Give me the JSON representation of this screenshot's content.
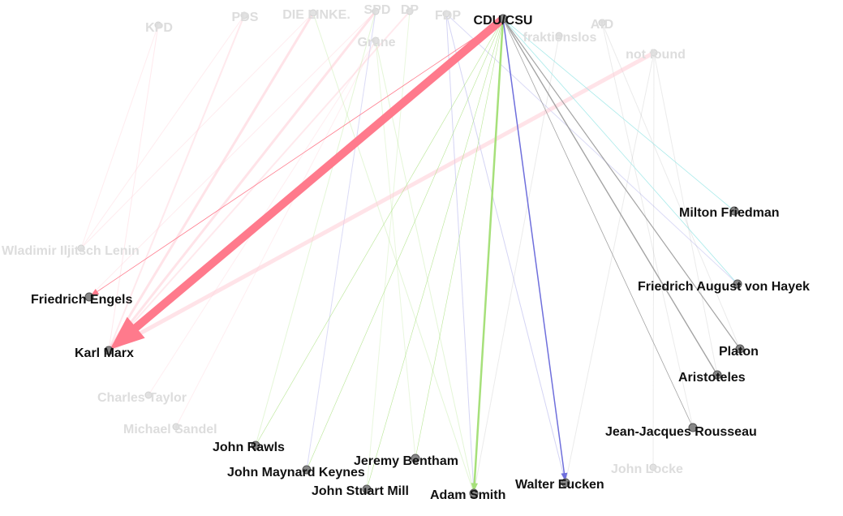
{
  "graph": {
    "highlighted_source": "CDU/CSU",
    "colors": {
      "red": "#ff7a8c",
      "pink": "#ffc8d2",
      "green": "#a6e07a",
      "blue": "#6f6fdc",
      "gray": "#9a9a9a",
      "cyan": "#9fe8e8",
      "node": "#888888"
    },
    "parties": [
      {
        "id": "kpd",
        "label": "KPD",
        "state": "faded"
      },
      {
        "id": "pds",
        "label": "PDS",
        "state": "faded"
      },
      {
        "id": "linke",
        "label": "DIE LINKE.",
        "state": "faded"
      },
      {
        "id": "spd",
        "label": "SPD",
        "state": "faded"
      },
      {
        "id": "dp",
        "label": "DP",
        "state": "faded"
      },
      {
        "id": "fdp",
        "label": "FDP",
        "state": "faded"
      },
      {
        "id": "gruene",
        "label": "Grüne",
        "state": "faded"
      },
      {
        "id": "cdu",
        "label": "CDU/CSU",
        "state": "active"
      },
      {
        "id": "afd",
        "label": "AfD",
        "state": "faded"
      },
      {
        "id": "fraktionslos",
        "label": "fraktionslos",
        "state": "faded"
      },
      {
        "id": "notfound",
        "label": "not found",
        "state": "faded"
      }
    ],
    "thinkers": [
      {
        "id": "friedman",
        "label": "Milton Friedman",
        "state": "active"
      },
      {
        "id": "lenin",
        "label": "Wladimir Iljitsch Lenin",
        "state": "faded"
      },
      {
        "id": "hayek",
        "label": "Friedrich August von Hayek",
        "state": "active"
      },
      {
        "id": "engels",
        "label": "Friedrich Engels",
        "state": "active"
      },
      {
        "id": "marx",
        "label": "Karl Marx",
        "state": "active"
      },
      {
        "id": "platon",
        "label": "Platon",
        "state": "active"
      },
      {
        "id": "aristoteles",
        "label": "Aristoteles",
        "state": "active"
      },
      {
        "id": "taylor",
        "label": "Charles Taylor",
        "state": "faded"
      },
      {
        "id": "sandel",
        "label": "Michael Sandel",
        "state": "faded"
      },
      {
        "id": "rousseau",
        "label": "Jean-Jacques Rousseau",
        "state": "active"
      },
      {
        "id": "rawls",
        "label": "John Rawls",
        "state": "active"
      },
      {
        "id": "bentham",
        "label": "Jeremy Bentham",
        "state": "active"
      },
      {
        "id": "keynes",
        "label": "John Maynard Keynes",
        "state": "active"
      },
      {
        "id": "locke",
        "label": "John Locke",
        "state": "faded"
      },
      {
        "id": "eucken",
        "label": "Walter Eucken",
        "state": "active"
      },
      {
        "id": "mill",
        "label": "John Stuart Mill",
        "state": "active"
      },
      {
        "id": "smith",
        "label": "Adam Smith",
        "state": "active"
      }
    ],
    "edges": [
      {
        "from": "cdu",
        "to": "marx",
        "weight": 10,
        "color": "red",
        "opacity": 1.0,
        "arrow": true
      },
      {
        "from": "cdu",
        "to": "smith",
        "weight": 2.5,
        "color": "green",
        "opacity": 1.0,
        "arrow": true
      },
      {
        "from": "cdu",
        "to": "eucken",
        "weight": 1.5,
        "color": "blue",
        "opacity": 1.0,
        "arrow": true
      },
      {
        "from": "cdu",
        "to": "engels",
        "weight": 0.8,
        "color": "red",
        "opacity": 1.0,
        "arrow": true
      },
      {
        "from": "cdu",
        "to": "platon",
        "weight": 1.2,
        "color": "gray",
        "opacity": 0.9,
        "arrow": false
      },
      {
        "from": "cdu",
        "to": "aristoteles",
        "weight": 1.4,
        "color": "gray",
        "opacity": 0.9,
        "arrow": false
      },
      {
        "from": "cdu",
        "to": "rousseau",
        "weight": 0.8,
        "color": "gray",
        "opacity": 0.9,
        "arrow": false
      },
      {
        "from": "cdu",
        "to": "hayek",
        "weight": 0.8,
        "color": "cyan",
        "opacity": 0.9,
        "arrow": false
      },
      {
        "from": "cdu",
        "to": "friedman",
        "weight": 0.8,
        "color": "cyan",
        "opacity": 0.9,
        "arrow": false
      },
      {
        "from": "cdu",
        "to": "rawls",
        "weight": 0.6,
        "color": "green",
        "opacity": 0.8,
        "arrow": false
      },
      {
        "from": "cdu",
        "to": "keynes",
        "weight": 0.6,
        "color": "green",
        "opacity": 0.8,
        "arrow": false
      },
      {
        "from": "cdu",
        "to": "mill",
        "weight": 0.6,
        "color": "green",
        "opacity": 0.8,
        "arrow": false
      },
      {
        "from": "cdu",
        "to": "bentham",
        "weight": 0.6,
        "color": "green",
        "opacity": 0.8,
        "arrow": false
      },
      {
        "from": "notfound",
        "to": "marx",
        "weight": 5,
        "color": "pink",
        "opacity": 0.5,
        "arrow": false
      },
      {
        "from": "spd",
        "to": "marx",
        "weight": 3,
        "color": "pink",
        "opacity": 0.5,
        "arrow": false
      },
      {
        "from": "linke",
        "to": "marx",
        "weight": 3,
        "color": "pink",
        "opacity": 0.5,
        "arrow": false
      },
      {
        "from": "pds",
        "to": "marx",
        "weight": 2,
        "color": "pink",
        "opacity": 0.4,
        "arrow": false
      },
      {
        "from": "dp",
        "to": "marx",
        "weight": 2,
        "color": "pink",
        "opacity": 0.4,
        "arrow": false
      },
      {
        "from": "kpd",
        "to": "marx",
        "weight": 1,
        "color": "pink",
        "opacity": 0.4,
        "arrow": false
      },
      {
        "from": "linke",
        "to": "lenin",
        "weight": 1,
        "color": "pink",
        "opacity": 0.35,
        "arrow": false
      },
      {
        "from": "pds",
        "to": "lenin",
        "weight": 1,
        "color": "pink",
        "opacity": 0.35,
        "arrow": false
      },
      {
        "from": "kpd",
        "to": "lenin",
        "weight": 1,
        "color": "pink",
        "opacity": 0.35,
        "arrow": false
      },
      {
        "from": "spd",
        "to": "engels",
        "weight": 1,
        "color": "pink",
        "opacity": 0.35,
        "arrow": false
      },
      {
        "from": "gruene",
        "to": "taylor",
        "weight": 1,
        "color": "pink",
        "opacity": 0.3,
        "arrow": false
      },
      {
        "from": "gruene",
        "to": "sandel",
        "weight": 1,
        "color": "pink",
        "opacity": 0.3,
        "arrow": false
      },
      {
        "from": "spd",
        "to": "rawls",
        "weight": 1,
        "color": "green",
        "opacity": 0.3,
        "arrow": false
      },
      {
        "from": "gruene",
        "to": "smith",
        "weight": 1,
        "color": "green",
        "opacity": 0.3,
        "arrow": false
      },
      {
        "from": "linke",
        "to": "smith",
        "weight": 1,
        "color": "green",
        "opacity": 0.3,
        "arrow": false
      },
      {
        "from": "fdp",
        "to": "eucken",
        "weight": 1,
        "color": "blue",
        "opacity": 0.3,
        "arrow": false
      },
      {
        "from": "fdp",
        "to": "smith",
        "weight": 1,
        "color": "blue",
        "opacity": 0.3,
        "arrow": false
      },
      {
        "from": "fdp",
        "to": "hayek",
        "weight": 1,
        "color": "blue",
        "opacity": 0.25,
        "arrow": false
      },
      {
        "from": "spd",
        "to": "keynes",
        "weight": 1,
        "color": "blue",
        "opacity": 0.25,
        "arrow": false
      },
      {
        "from": "afd",
        "to": "rousseau",
        "weight": 1,
        "color": "gray",
        "opacity": 0.2,
        "arrow": false
      },
      {
        "from": "afd",
        "to": "platon",
        "weight": 1,
        "color": "gray",
        "opacity": 0.2,
        "arrow": false
      },
      {
        "from": "notfound",
        "to": "locke",
        "weight": 1,
        "color": "gray",
        "opacity": 0.2,
        "arrow": false
      },
      {
        "from": "notfound",
        "to": "eucken",
        "weight": 1,
        "color": "gray",
        "opacity": 0.2,
        "arrow": false
      },
      {
        "from": "notfound",
        "to": "aristoteles",
        "weight": 1,
        "color": "gray",
        "opacity": 0.2,
        "arrow": false
      },
      {
        "from": "fraktionslos",
        "to": "smith",
        "weight": 1,
        "color": "gray",
        "opacity": 0.2,
        "arrow": false
      },
      {
        "from": "gruene",
        "to": "bentham",
        "weight": 1,
        "color": "green",
        "opacity": 0.25,
        "arrow": false
      },
      {
        "from": "dp",
        "to": "mill",
        "weight": 1,
        "color": "green",
        "opacity": 0.25,
        "arrow": false
      }
    ]
  }
}
